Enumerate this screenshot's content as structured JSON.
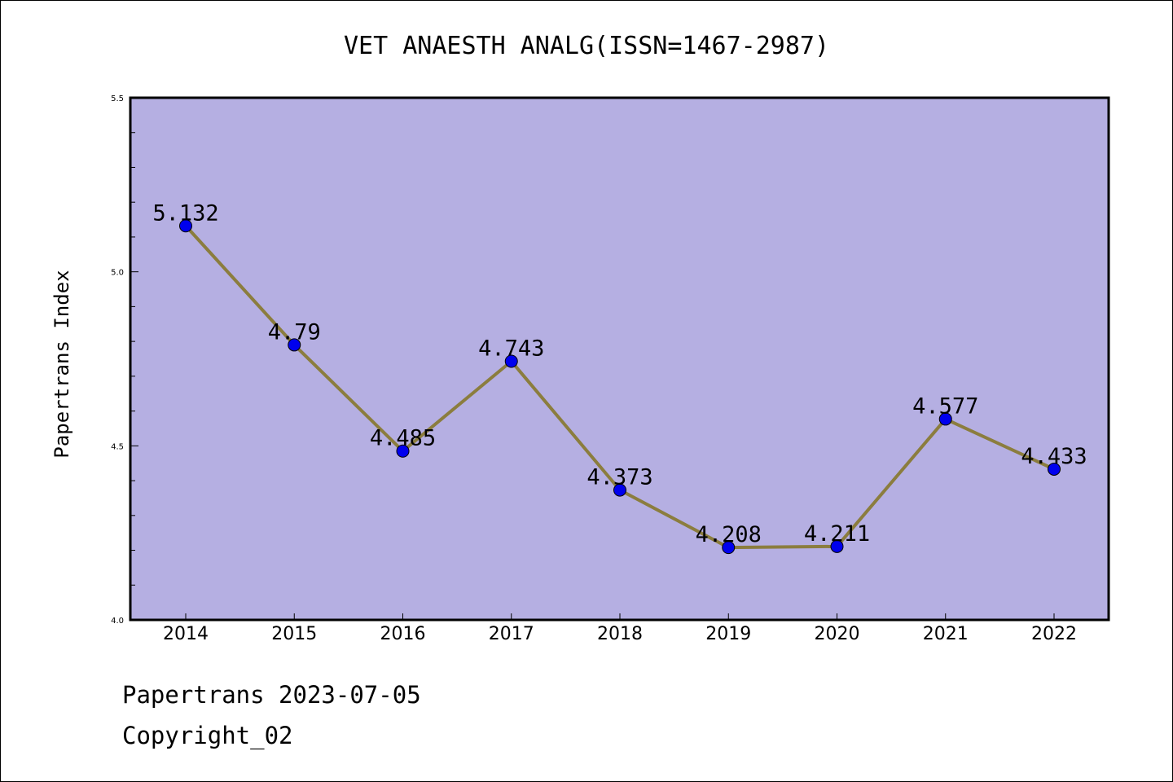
{
  "chart_data": {
    "type": "line",
    "title": "VET ANAESTH ANALG(ISSN=1467-2987)",
    "xlabel": "",
    "ylabel": "Papertrans Index",
    "categories": [
      "2014",
      "2015",
      "2016",
      "2017",
      "2018",
      "2019",
      "2020",
      "2021",
      "2022"
    ],
    "series": [
      {
        "values": [
          5.132,
          4.79,
          4.485,
          4.743,
          4.373,
          4.208,
          4.211,
          4.577,
          4.433
        ],
        "labels": [
          "5.132",
          "4.79",
          "4.485",
          "4.743",
          "4.373",
          "4.208",
          "4.211",
          "4.577",
          "4.433"
        ]
      }
    ],
    "ylim": [
      4.0,
      5.5
    ],
    "yticks": [
      "4.0",
      "4.5",
      "5.0",
      "5.5"
    ],
    "grid": false,
    "colors": {
      "plot_background": "#b5afe2",
      "line": "#8b7d3e",
      "marker": "#0000ee"
    }
  },
  "footer": {
    "line1": "Papertrans 2023-07-05",
    "line2": "Copyright_02"
  }
}
